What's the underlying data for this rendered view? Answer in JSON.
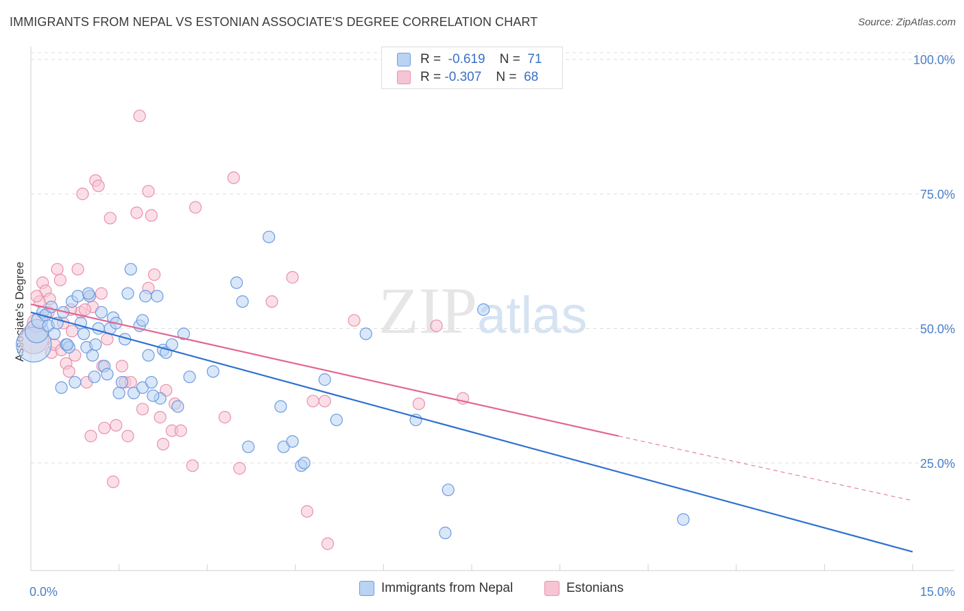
{
  "title": "IMMIGRANTS FROM NEPAL VS ESTONIAN ASSOCIATE'S DEGREE CORRELATION CHART",
  "source": "Source: ZipAtlas.com",
  "watermark": {
    "zip": "ZIP",
    "atlas": "atlas"
  },
  "legend_top": {
    "rows": [
      {
        "r_label": "R =",
        "r_value": "-0.619",
        "n_label": "N =",
        "n_value": "71"
      },
      {
        "r_label": "R =",
        "r_value": "-0.307",
        "n_label": "N =",
        "n_value": "68"
      }
    ]
  },
  "colors": {
    "nepal_fill": "#b9d3f3",
    "nepal_stroke": "#6b9be0",
    "nepal_line": "#2e6fd1",
    "estonian_fill": "#f7c4d4",
    "estonian_stroke": "#e890ad",
    "estonian_line": "#e2668f",
    "grid": "#dddddd",
    "tick_label": "#4a7fc9"
  },
  "chart_data": {
    "type": "scatter",
    "xlabel": "",
    "ylabel": "Associate's Degree",
    "xlim": [
      0,
      15
    ],
    "ylim": [
      5,
      102
    ],
    "x_tick_labels": [
      {
        "value": 0,
        "label": "0.0%"
      },
      {
        "value": 15,
        "label": "15.0%"
      }
    ],
    "y_tick_labels": [
      {
        "value": 100,
        "label": "100.0%"
      },
      {
        "value": 75,
        "label": "75.0%"
      },
      {
        "value": 50,
        "label": "50.0%"
      },
      {
        "value": 25,
        "label": "25.0%"
      }
    ],
    "legend": [
      "Immigrants from Nepal",
      "Estonians"
    ],
    "legend_position": "bottom",
    "series": [
      {
        "name": "Immigrants from Nepal",
        "trend": {
          "x": [
            0,
            15
          ],
          "y": [
            53,
            8.5
          ]
        },
        "points": [
          [
            0.05,
            47,
            3
          ],
          [
            0.1,
            49.5,
            2
          ],
          [
            0.15,
            51.5,
            1.4
          ],
          [
            0.2,
            53,
            1
          ],
          [
            0.25,
            52.5,
            1
          ],
          [
            0.3,
            50.5,
            1
          ],
          [
            0.35,
            54,
            1
          ],
          [
            0.4,
            49,
            1
          ],
          [
            0.45,
            51,
            1
          ],
          [
            0.55,
            53,
            1
          ],
          [
            0.6,
            47,
            1
          ],
          [
            0.65,
            46.5,
            1
          ],
          [
            0.7,
            55,
            1
          ],
          [
            0.75,
            40,
            1
          ],
          [
            0.8,
            56,
            1
          ],
          [
            0.85,
            51,
            1
          ],
          [
            0.9,
            49,
            1
          ],
          [
            0.95,
            46.5,
            1
          ],
          [
            1.0,
            56,
            1
          ],
          [
            1.05,
            45,
            1
          ],
          [
            1.1,
            47,
            1
          ],
          [
            1.15,
            50,
            1
          ],
          [
            1.2,
            53,
            1
          ],
          [
            1.25,
            43,
            1
          ],
          [
            1.3,
            41.5,
            1
          ],
          [
            1.35,
            50,
            1
          ],
          [
            1.4,
            52,
            1
          ],
          [
            1.45,
            51,
            1
          ],
          [
            1.5,
            38,
            1
          ],
          [
            1.55,
            40,
            1
          ],
          [
            1.6,
            48,
            1
          ],
          [
            1.65,
            56.5,
            1
          ],
          [
            1.7,
            61,
            1
          ],
          [
            1.75,
            38,
            1
          ],
          [
            1.85,
            50.5,
            1
          ],
          [
            1.9,
            39,
            1
          ],
          [
            1.95,
            56,
            1
          ],
          [
            2.0,
            45,
            1
          ],
          [
            2.05,
            40,
            1
          ],
          [
            2.15,
            56,
            1
          ],
          [
            2.2,
            37,
            1
          ],
          [
            2.25,
            46,
            1
          ],
          [
            2.3,
            45.5,
            1
          ],
          [
            2.4,
            47,
            1
          ],
          [
            2.5,
            35.5,
            1
          ],
          [
            2.6,
            49,
            1
          ],
          [
            2.7,
            41,
            1
          ],
          [
            1.08,
            41,
            1
          ],
          [
            3.1,
            42,
            1
          ],
          [
            3.5,
            58.5,
            1
          ],
          [
            3.6,
            55,
            1
          ],
          [
            4.05,
            67,
            1
          ],
          [
            4.25,
            35.5,
            1
          ],
          [
            3.7,
            28,
            1
          ],
          [
            4.3,
            28,
            1
          ],
          [
            4.45,
            29,
            1
          ],
          [
            4.6,
            24.5,
            1
          ],
          [
            4.65,
            25,
            1
          ],
          [
            5.0,
            40.5,
            1
          ],
          [
            5.2,
            33,
            1
          ],
          [
            5.7,
            49,
            1
          ],
          [
            6.55,
            33,
            1
          ],
          [
            7.1,
            20,
            1
          ],
          [
            7.05,
            12,
            1
          ],
          [
            7.7,
            53.5,
            1
          ],
          [
            11.1,
            14.5,
            1
          ],
          [
            0.52,
            39,
            1
          ],
          [
            0.62,
            47,
            1
          ],
          [
            1.9,
            51.5,
            1
          ],
          [
            2.08,
            37.5,
            1
          ],
          [
            0.98,
            56.5,
            1
          ]
        ]
      },
      {
        "name": "Estonians",
        "trend": {
          "x": [
            0,
            10.0
          ],
          "y": [
            54.5,
            30
          ],
          "dash_to": {
            "x": 15,
            "y": 18
          }
        },
        "points": [
          [
            0.05,
            48,
            2.5
          ],
          [
            0.1,
            51,
            1.6
          ],
          [
            0.15,
            55,
            1
          ],
          [
            0.2,
            58.5,
            1
          ],
          [
            0.25,
            57,
            1
          ],
          [
            0.3,
            53,
            1
          ],
          [
            0.35,
            45.5,
            1
          ],
          [
            0.4,
            47,
            1
          ],
          [
            0.45,
            61,
            1
          ],
          [
            0.5,
            59,
            1
          ],
          [
            0.55,
            51,
            1
          ],
          [
            0.6,
            43.5,
            1
          ],
          [
            0.65,
            42,
            1
          ],
          [
            0.7,
            49.5,
            1
          ],
          [
            0.75,
            45,
            1
          ],
          [
            0.8,
            61,
            1
          ],
          [
            0.85,
            53,
            1
          ],
          [
            0.95,
            40,
            1
          ],
          [
            1.0,
            56,
            1
          ],
          [
            1.05,
            54,
            1
          ],
          [
            1.1,
            77.5,
            1
          ],
          [
            1.15,
            76.5,
            1
          ],
          [
            1.2,
            56.5,
            1
          ],
          [
            1.25,
            31.5,
            1
          ],
          [
            1.3,
            48,
            1
          ],
          [
            1.35,
            70.5,
            1
          ],
          [
            1.4,
            21.5,
            1
          ],
          [
            1.55,
            43,
            1
          ],
          [
            1.6,
            40,
            1
          ],
          [
            1.65,
            30,
            1
          ],
          [
            1.7,
            40,
            1
          ],
          [
            1.8,
            71.5,
            1
          ],
          [
            1.85,
            89.5,
            1
          ],
          [
            1.9,
            35,
            1
          ],
          [
            2.0,
            75.5,
            1
          ],
          [
            2.05,
            71,
            1
          ],
          [
            2.1,
            60,
            1
          ],
          [
            2.2,
            33.5,
            1
          ],
          [
            2.25,
            28.5,
            1
          ],
          [
            2.3,
            38.5,
            1
          ],
          [
            2.4,
            31,
            1
          ],
          [
            2.45,
            36,
            1
          ],
          [
            2.55,
            31,
            1
          ],
          [
            2.75,
            24.5,
            1
          ],
          [
            2.8,
            72.5,
            1
          ],
          [
            3.3,
            33.5,
            1
          ],
          [
            3.45,
            78,
            1
          ],
          [
            3.55,
            24,
            1
          ],
          [
            4.1,
            55,
            1
          ],
          [
            4.45,
            59.5,
            1
          ],
          [
            4.7,
            16,
            1
          ],
          [
            4.8,
            36.5,
            1
          ],
          [
            5.0,
            36.5,
            1
          ],
          [
            5.05,
            10,
            1
          ],
          [
            5.5,
            51.5,
            1
          ],
          [
            6.6,
            36,
            1
          ],
          [
            6.9,
            50.5,
            1
          ],
          [
            7.35,
            37,
            1
          ],
          [
            0.52,
            46,
            1
          ],
          [
            0.92,
            53.5,
            1
          ],
          [
            1.02,
            30,
            1
          ],
          [
            1.45,
            32,
            1
          ],
          [
            0.1,
            56,
            1
          ],
          [
            0.32,
            55.5,
            1
          ],
          [
            0.68,
            53.5,
            1
          ],
          [
            0.88,
            75,
            1
          ],
          [
            1.22,
            43,
            1
          ],
          [
            2.0,
            57.5,
            1
          ]
        ]
      }
    ]
  }
}
